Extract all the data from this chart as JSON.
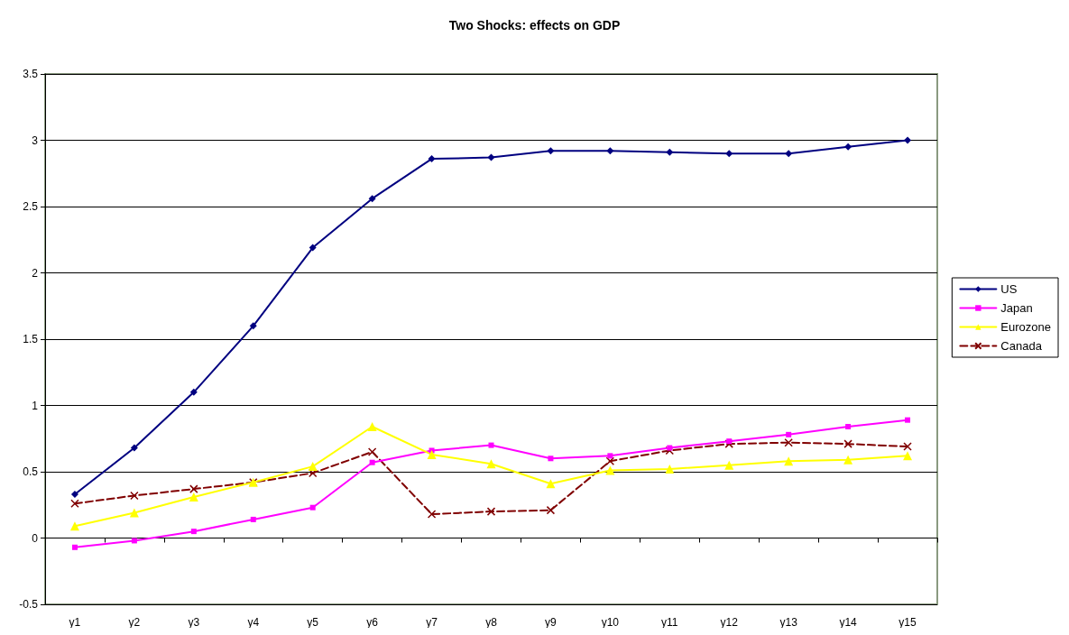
{
  "chart_data": {
    "type": "line",
    "title": "Two Shocks: effects on GDP",
    "categories": [
      "y1",
      "y2",
      "y3",
      "y4",
      "y5",
      "y6",
      "y7",
      "y8",
      "y9",
      "y10",
      "y11",
      "y12",
      "y13",
      "y14",
      "y15"
    ],
    "series": [
      {
        "name": "US",
        "color": "#000080",
        "marker": "diamond",
        "line_style": "solid",
        "values": [
          0.33,
          0.68,
          1.1,
          1.6,
          2.19,
          2.56,
          2.86,
          2.87,
          2.92,
          2.92,
          2.91,
          2.9,
          2.9,
          2.95,
          3.0
        ]
      },
      {
        "name": "Japan",
        "color": "#ff00ff",
        "marker": "square",
        "line_style": "solid",
        "values": [
          -0.07,
          -0.02,
          0.05,
          0.14,
          0.23,
          0.57,
          0.66,
          0.7,
          0.6,
          0.62,
          0.68,
          0.73,
          0.78,
          0.84,
          0.89
        ]
      },
      {
        "name": "Eurozone",
        "color": "#ffff00",
        "marker": "triangle",
        "line_style": "solid",
        "values": [
          0.09,
          0.19,
          0.31,
          0.42,
          0.54,
          0.84,
          0.63,
          0.56,
          0.41,
          0.51,
          0.52,
          0.55,
          0.58,
          0.59,
          0.62
        ]
      },
      {
        "name": "Canada",
        "color": "#800000",
        "marker": "cross",
        "line_style": "dashed",
        "values": [
          0.26,
          0.32,
          0.37,
          0.42,
          0.49,
          0.65,
          0.18,
          0.2,
          0.21,
          0.58,
          0.66,
          0.71,
          0.72,
          0.71,
          0.69
        ]
      }
    ],
    "ylim": [
      -0.5,
      3.5
    ],
    "yticks": [
      -0.5,
      0,
      0.5,
      1,
      1.5,
      2,
      2.5,
      3,
      3.5
    ],
    "grid": "y",
    "legend": "right"
  }
}
